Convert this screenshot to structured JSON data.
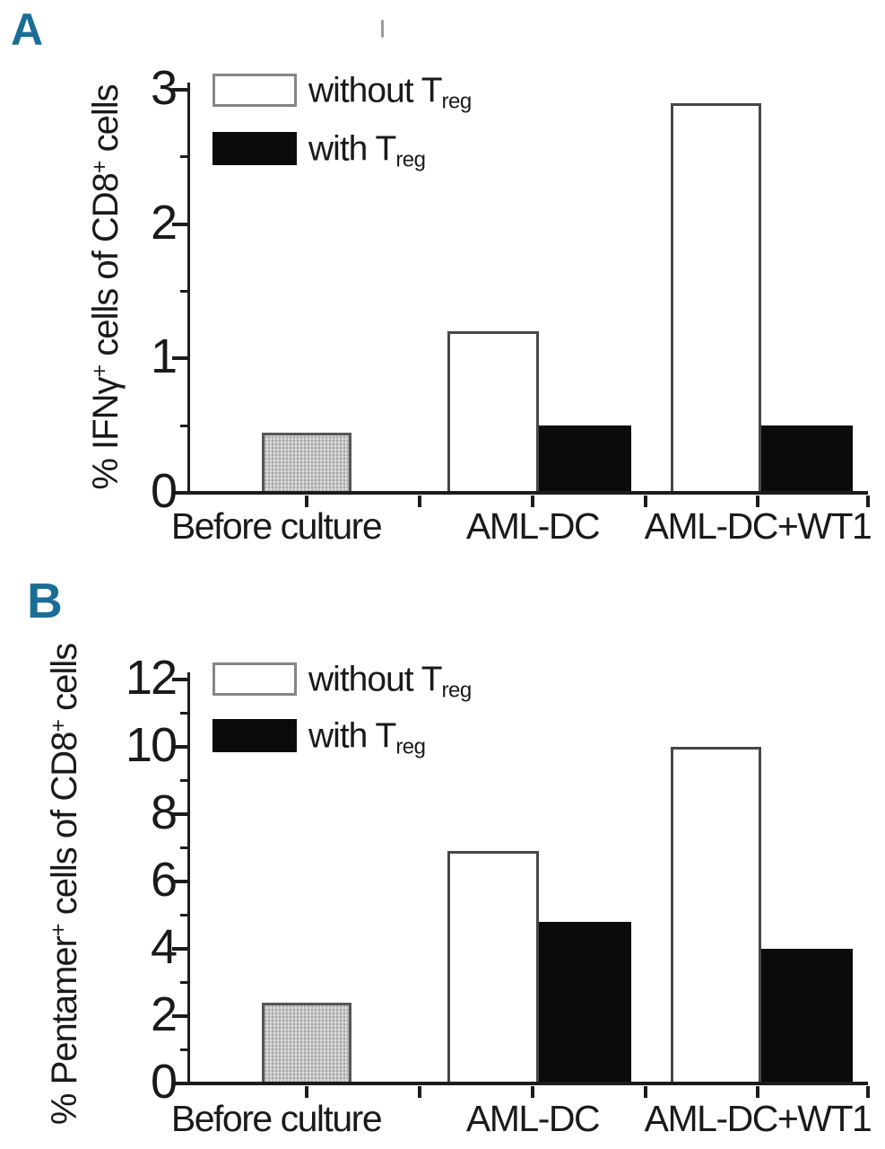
{
  "colors": {
    "panel_letter": "#1a6d96",
    "bar_white_fill": "#ffffff",
    "bar_black_fill": "#0b0b0b",
    "bar_gray_fill": "#c9c9c9",
    "axis": "#1c1c1c"
  },
  "chart_data": [
    {
      "type": "bar",
      "panel_label": "A",
      "ylabel": "% IFNγ+ cells of CD8+ cells",
      "ylabel_parts": [
        {
          "t": "% IFNγ"
        },
        {
          "sup": "+"
        },
        {
          "t": " cells of CD8"
        },
        {
          "sup": "+"
        },
        {
          "t": " cells"
        }
      ],
      "ylim": [
        0,
        3
      ],
      "yticks_major": [
        0,
        1,
        2,
        3
      ],
      "yticks_minor": [
        0.5,
        1.5,
        2.5
      ],
      "grid": false,
      "legend_position": "upper-left-inside",
      "categories": [
        "Before culture",
        "AML-DC",
        "AML-DC+WT1"
      ],
      "series": [
        {
          "name": "Before culture",
          "style": "gray",
          "values": [
            0.45,
            null,
            null
          ]
        },
        {
          "name": "without Treg",
          "style": "white",
          "values": [
            null,
            1.2,
            2.9
          ]
        },
        {
          "name": "with Treg",
          "style": "black",
          "values": [
            null,
            0.5,
            0.5
          ]
        }
      ],
      "legend": [
        {
          "main": "without T",
          "sub": "reg",
          "swatch": "white"
        },
        {
          "main": "with T",
          "sub": "reg",
          "swatch": "black"
        }
      ]
    },
    {
      "type": "bar",
      "panel_label": "B",
      "ylabel": "% Pentamer+ cells of CD8+ cells",
      "ylabel_parts": [
        {
          "t": "% Pentamer"
        },
        {
          "sup": "+"
        },
        {
          "t": " cells of CD8"
        },
        {
          "sup": "+"
        },
        {
          "t": " cells"
        }
      ],
      "ylim": [
        0,
        12
      ],
      "yticks_major": [
        0,
        2,
        4,
        6,
        8,
        10,
        12
      ],
      "yticks_minor": [
        1,
        3,
        5,
        7,
        9,
        11
      ],
      "grid": false,
      "legend_position": "upper-left-inside",
      "categories": [
        "Before culture",
        "AML-DC",
        "AML-DC+WT1"
      ],
      "series": [
        {
          "name": "Before culture",
          "style": "gray",
          "values": [
            2.4,
            null,
            null
          ]
        },
        {
          "name": "without Treg",
          "style": "white",
          "values": [
            null,
            6.9,
            10.0
          ]
        },
        {
          "name": "with Treg",
          "style": "black",
          "values": [
            null,
            4.8,
            4.0
          ]
        }
      ],
      "legend": [
        {
          "main": "without T",
          "sub": "reg",
          "swatch": "white"
        },
        {
          "main": "with T",
          "sub": "reg",
          "swatch": "black"
        }
      ]
    }
  ]
}
